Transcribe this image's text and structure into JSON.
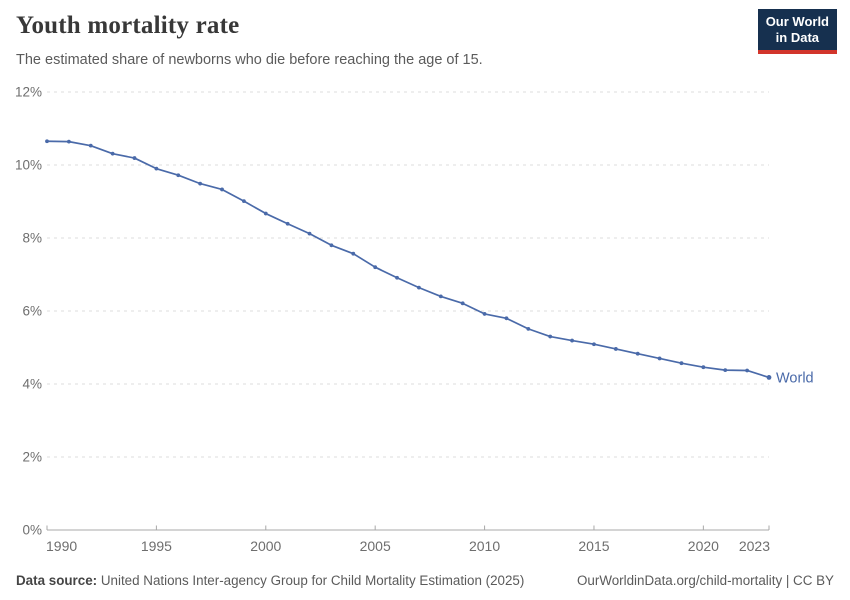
{
  "header": {
    "title": "Youth mortality rate",
    "subtitle": "The estimated share of newborns who die before reaching the age of 15."
  },
  "logo": {
    "line1": "Our World",
    "line2": "in Data",
    "bg_color": "#16304f",
    "accent_color": "#d2352b"
  },
  "chart_data": {
    "type": "line",
    "title": "Youth mortality rate",
    "xlabel": "",
    "ylabel": "",
    "unit": "%",
    "x_range": [
      1990,
      2023
    ],
    "ylim": [
      0,
      12
    ],
    "y_ticks": [
      0,
      2,
      4,
      6,
      8,
      10,
      12
    ],
    "x_ticks": [
      1990,
      1995,
      2000,
      2005,
      2010,
      2015,
      2020,
      2023
    ],
    "grid": "horizontal-dashed",
    "legend_position": "end-of-line",
    "series": [
      {
        "name": "World",
        "color": "#4a6aa9",
        "years": [
          1990,
          1991,
          1992,
          1993,
          1994,
          1995,
          1996,
          1997,
          1998,
          1999,
          2000,
          2001,
          2002,
          2003,
          2004,
          2005,
          2006,
          2007,
          2008,
          2009,
          2010,
          2011,
          2012,
          2013,
          2014,
          2015,
          2016,
          2017,
          2018,
          2019,
          2020,
          2021,
          2022,
          2023
        ],
        "values": [
          10.65,
          10.64,
          10.53,
          10.31,
          10.19,
          9.9,
          9.72,
          9.49,
          9.33,
          9.01,
          8.67,
          8.39,
          8.12,
          7.8,
          7.57,
          7.2,
          6.91,
          6.64,
          6.4,
          6.21,
          5.92,
          5.8,
          5.51,
          5.3,
          5.19,
          5.09,
          4.96,
          4.83,
          4.7,
          4.57,
          4.46,
          4.38,
          4.37,
          4.18
        ]
      }
    ]
  },
  "style": {
    "grid_color": "#dcdcdc",
    "axis_color": "#a8a8a8",
    "tick_label_color": "#6e6e6e"
  },
  "footer": {
    "source_label": "Data source:",
    "source_text": "United Nations Inter-agency Group for Child Mortality Estimation (2025)",
    "link_text": "OurWorldinData.org/child-mortality | CC BY"
  }
}
